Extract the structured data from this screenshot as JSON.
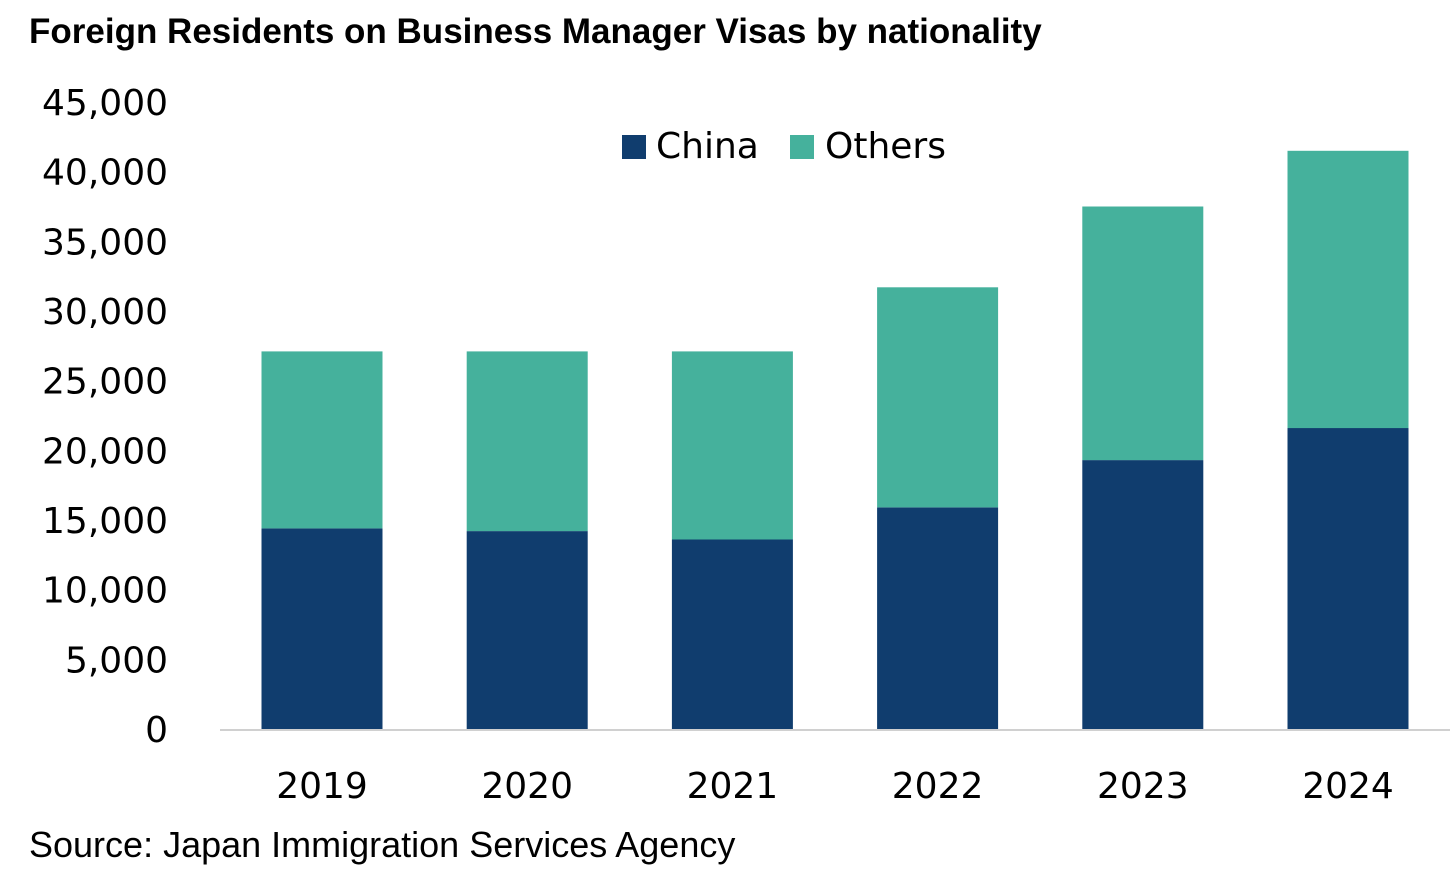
{
  "colors": {
    "china": "#103d6e",
    "others": "#45b19c",
    "axis": "#d0d0d0",
    "text": "#000000"
  },
  "chart_data": {
    "type": "bar",
    "stacked": true,
    "title": "Foreign Residents on Business Manager Visas by nationality",
    "source": "Source: Japan Immigration Services Agency",
    "categories": [
      "2019",
      "2020",
      "2021",
      "2022",
      "2023",
      "2024"
    ],
    "series": [
      {
        "name": "China",
        "color_key": "china",
        "values": [
          14400,
          14200,
          13600,
          15900,
          19300,
          21600
        ]
      },
      {
        "name": "Others",
        "color_key": "others",
        "values": [
          12700,
          12900,
          13500,
          15800,
          18200,
          19900
        ]
      }
    ],
    "ylim": [
      0,
      45000
    ],
    "yticks": [
      0,
      5000,
      10000,
      15000,
      20000,
      25000,
      30000,
      35000,
      40000,
      45000
    ],
    "ytick_labels": [
      "0",
      "5,000",
      "10,000",
      "15,000",
      "20,000",
      "25,000",
      "30,000",
      "35,000",
      "40,000",
      "45,000"
    ],
    "legend_position": "top-center",
    "xlabel": "",
    "ylabel": "",
    "grid": false
  }
}
